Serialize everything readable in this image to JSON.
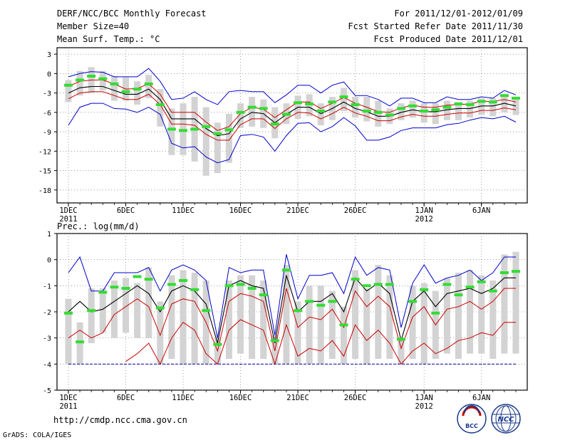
{
  "header": {
    "title": "DERF/NCC/BCC Monthly Forecast",
    "member": "Member Size=40",
    "variable": "Mean Surf. Temp.: °C",
    "period": "For 2011/12/01-2012/01/09",
    "started": "Fcst Started Refer Date 2011/11/30",
    "produced": "Fcst Produced Date 2011/12/01"
  },
  "footer": {
    "url": "http://cmdp.ncc.cma.gov.cn",
    "credit": "GrADS: COLA/IGES",
    "logo_left_text": "BCC",
    "logo_right_text": "NCC"
  },
  "colors": {
    "mean": "#000000",
    "inner": "#cc0000",
    "outer": "#0000cc",
    "bar": "#d3d3d3",
    "obs": "#33dd33",
    "grid": "#666666"
  },
  "chart_data": [
    {
      "type": "line",
      "title": "Mean Surf. Temp.: °C",
      "x_start_day": 1,
      "n_days": 40,
      "xticks": [
        {
          "day": 1,
          "label": "1DEC",
          "sub": "2011"
        },
        {
          "day": 6,
          "label": "6DEC",
          "sub": ""
        },
        {
          "day": 11,
          "label": "11DEC",
          "sub": ""
        },
        {
          "day": 16,
          "label": "16DEC",
          "sub": ""
        },
        {
          "day": 21,
          "label": "21DEC",
          "sub": ""
        },
        {
          "day": 26,
          "label": "26DEC",
          "sub": ""
        },
        {
          "day": 32,
          "label": "1JAN",
          "sub": "2012"
        },
        {
          "day": 37,
          "label": "6JAN",
          "sub": ""
        }
      ],
      "ylim": [
        -20,
        4
      ],
      "yticks": [
        3,
        0,
        -3,
        -6,
        -9,
        -12,
        -15,
        -18
      ],
      "series": [
        {
          "name": "mean",
          "values": [
            -3,
            -2.2,
            -2,
            -2,
            -2.6,
            -3.2,
            -3.2,
            -2.4,
            -4,
            -7,
            -7,
            -7,
            -8.5,
            -9.6,
            -9.3,
            -7,
            -6,
            -6.2,
            -7.6,
            -6.3,
            -5.2,
            -5.2,
            -6.2,
            -5.4,
            -4.4,
            -5.4,
            -5.9,
            -6.6,
            -6.6,
            -6,
            -5.6,
            -5.9,
            -5.9,
            -5.6,
            -5.4,
            -5.4,
            -5,
            -5,
            -4.6,
            -5
          ]
        },
        {
          "name": "upper",
          "values": [
            -2,
            -1.2,
            -1,
            -1,
            -1.6,
            -2.4,
            -2.3,
            -1.6,
            -3.2,
            -6,
            -6,
            -6,
            -7.5,
            -8.8,
            -8.2,
            -6.2,
            -5.2,
            -5.5,
            -6.8,
            -5.6,
            -4.4,
            -4.4,
            -5.4,
            -4.6,
            -3.7,
            -4.6,
            -5.2,
            -5.9,
            -6,
            -5.3,
            -4.9,
            -5.2,
            -5.2,
            -4.9,
            -4.8,
            -4.7,
            -4.3,
            -4.3,
            -4,
            -4.4
          ]
        },
        {
          "name": "lower",
          "values": [
            -3.9,
            -3,
            -2.8,
            -2.8,
            -3.4,
            -4,
            -4,
            -3.2,
            -4.8,
            -7.8,
            -7.8,
            -8,
            -9.4,
            -10.3,
            -10.3,
            -7.9,
            -7,
            -7,
            -8.5,
            -7,
            -6,
            -6.1,
            -7,
            -6.2,
            -5.2,
            -6.1,
            -6.6,
            -7.3,
            -7.3,
            -6.7,
            -6.3,
            -6.6,
            -6.6,
            -6.3,
            -6.1,
            -6.1,
            -5.7,
            -5.7,
            -5.3,
            -5.6
          ]
        },
        {
          "name": "max",
          "values": [
            -0.5,
            0,
            0.3,
            0.2,
            -0.5,
            -0.5,
            -0.5,
            0.8,
            -1.2,
            -4,
            -3.8,
            -2.8,
            -4,
            -4.8,
            -2.8,
            -2.6,
            -2.8,
            -2.8,
            -4.5,
            -3.3,
            -1.8,
            -1.8,
            -3,
            -1.8,
            -1.3,
            -3.4,
            -3.4,
            -4,
            -5,
            -3.8,
            -3.8,
            -4.5,
            -4.5,
            -3.6,
            -4,
            -4,
            -3.6,
            -3.8,
            -2.6,
            -3.3
          ]
        },
        {
          "name": "min",
          "values": [
            -8,
            -5.2,
            -4.6,
            -4.6,
            -5.4,
            -5.5,
            -6,
            -5.2,
            -6.3,
            -10.8,
            -11.5,
            -11.3,
            -12.9,
            -13.8,
            -13.3,
            -9.6,
            -9.4,
            -9.8,
            -12,
            -9.6,
            -7.7,
            -7.6,
            -9,
            -8.2,
            -6.8,
            -8.1,
            -10.3,
            -10.3,
            -9.8,
            -8.8,
            -8.4,
            -8.4,
            -8.4,
            -7.9,
            -7.7,
            -7.2,
            -6.8,
            -7,
            -6.6,
            -7.5
          ]
        },
        {
          "name": "bar_top",
          "values": [
            -1,
            0.4,
            1,
            0.4,
            -0.4,
            -0.6,
            -1.2,
            -0.2,
            -2.4,
            -5.4,
            -4.6,
            -3.6,
            -5.2,
            -7.6,
            -6.2,
            -4.6,
            -3.6,
            -4,
            -5.2,
            -4.6,
            -3.4,
            -3.2,
            -4.6,
            -3.6,
            -2.2,
            -3.6,
            -3.6,
            -4.2,
            -5.4,
            -4.6,
            -4.2,
            -4.6,
            -4.6,
            -4.2,
            -4.4,
            -4.2,
            -3.8,
            -3.8,
            -3.2,
            -3.6
          ]
        },
        {
          "name": "bar_bottom",
          "values": [
            -4.4,
            -3.4,
            -3,
            -2.6,
            -4.2,
            -4.2,
            -4.8,
            -3.8,
            -8.2,
            -12.6,
            -12.6,
            -13.6,
            -15.8,
            -15.4,
            -13.8,
            -8.4,
            -8.2,
            -8.4,
            -10,
            -7.8,
            -7,
            -6.6,
            -8,
            -7.2,
            -5.8,
            -6.8,
            -7.4,
            -8.2,
            -7.8,
            -7.2,
            -6.8,
            -7.6,
            -7.8,
            -7.2,
            -7.2,
            -6.8,
            -6.4,
            -6.6,
            -6,
            -6.4
          ]
        },
        {
          "name": "observed",
          "values": [
            -1.8,
            -1,
            -0.4,
            -0.8,
            -1.6,
            -2.8,
            -2.4,
            -1.6,
            -4.8,
            -8.6,
            -8.8,
            -8.6,
            -8.2,
            -9.3,
            -8.7,
            -6,
            -5.2,
            -5.4,
            -7.8,
            -6.3,
            -4.5,
            -4.7,
            -5.8,
            -4.4,
            -3.6,
            -4.8,
            -5.8,
            -6,
            -6.4,
            -5.4,
            -5,
            -5.8,
            -5.6,
            -5.2,
            -4.7,
            -4.8,
            -4.3,
            -4.4,
            -3.4,
            -3.8
          ]
        }
      ]
    },
    {
      "type": "line",
      "title": "Prec.: log(mm/d)",
      "x_start_day": 1,
      "n_days": 40,
      "xticks": [
        {
          "day": 1,
          "label": "1DEC",
          "sub": "2011"
        },
        {
          "day": 6,
          "label": "6DEC",
          "sub": ""
        },
        {
          "day": 11,
          "label": "11DEC",
          "sub": ""
        },
        {
          "day": 16,
          "label": "16DEC",
          "sub": ""
        },
        {
          "day": 21,
          "label": "21DEC",
          "sub": ""
        },
        {
          "day": 26,
          "label": "26DEC",
          "sub": ""
        },
        {
          "day": 32,
          "label": "1JAN",
          "sub": "2012"
        },
        {
          "day": 37,
          "label": "6JAN",
          "sub": ""
        }
      ],
      "ylim": [
        -5,
        1
      ],
      "yticks": [
        1,
        0,
        -1,
        -2,
        -3,
        -4,
        -5
      ],
      "baseline": -4,
      "series": [
        {
          "name": "max",
          "values": [
            -0.5,
            0.1,
            -1.2,
            -1.2,
            -0.5,
            -0.5,
            -0.5,
            -0.3,
            -1.2,
            -0.4,
            -0.2,
            -0.4,
            -0.8,
            -3,
            -0.3,
            -0.5,
            -0.4,
            -0.4,
            -2.9,
            0.2,
            -1.5,
            -0.6,
            -0.6,
            -0.5,
            -1.3,
            0.1,
            -0.6,
            -0.3,
            -0.4,
            -2.6,
            -0.9,
            -0.2,
            -0.9,
            -0.7,
            -0.6,
            -0.4,
            -0.8,
            -0.5,
            0.1,
            0.1
          ]
        },
        {
          "name": "mean",
          "values": [
            -2,
            -1.6,
            -2,
            -1.9,
            -1.6,
            -1.3,
            -1,
            -1.3,
            -2,
            -1.2,
            -1,
            -1.2,
            -1.7,
            -3.2,
            -1,
            -0.8,
            -1,
            -1.1,
            -3.2,
            -0.6,
            -2,
            -1.6,
            -1.6,
            -1.3,
            -2,
            -0.7,
            -1.2,
            -0.9,
            -1.3,
            -3.1,
            -1.6,
            -1.2,
            -1.8,
            -1.3,
            -1.2,
            -1.1,
            -1.3,
            -1.1,
            -0.7,
            -0.7
          ]
        },
        {
          "name": "inner",
          "values": [
            -3,
            -2.7,
            -3,
            -2.8,
            -2.1,
            -1.8,
            -1.5,
            -1.8,
            -2.9,
            -1.7,
            -1.5,
            -1.6,
            -2.4,
            -3.5,
            -1.6,
            -1.3,
            -1.4,
            -1.6,
            -3.5,
            -1.1,
            -2.6,
            -2.2,
            -2.3,
            -1.9,
            -2.6,
            -1.2,
            -1.8,
            -1.4,
            -1.8,
            -3.4,
            -2.2,
            -1.8,
            -2.5,
            -1.9,
            -1.8,
            -1.6,
            -1.9,
            -1.6,
            -1.1,
            -1.1
          ]
        },
        {
          "name": "inner2",
          "values": [
            null,
            null,
            null,
            null,
            null,
            -3.9,
            -3.6,
            -3.2,
            -4,
            -3,
            -2.4,
            -2.7,
            -3.6,
            -4,
            -2.7,
            -2.3,
            -2.5,
            -2.7,
            -4,
            -2.5,
            -3.7,
            -3.4,
            -3.5,
            -3.1,
            -3.7,
            -2.5,
            -3.1,
            -2.7,
            -3.2,
            -4,
            -3.5,
            -3.2,
            -3.6,
            -3.4,
            -3.1,
            -3,
            -2.8,
            -2.9,
            -2.4,
            -2.4
          ]
        },
        {
          "name": "bar_top",
          "values": [
            -1.5,
            -2.4,
            -1.1,
            -1.1,
            -0.8,
            -0.7,
            -0.9,
            -0.3,
            -1.6,
            -0.6,
            -0.4,
            -0.5,
            -0.8,
            -3,
            -0.8,
            -0.6,
            -0.6,
            -0.8,
            -2.9,
            -0.2,
            -1.6,
            -1,
            -1,
            -1.2,
            -1.8,
            -0.4,
            -1.1,
            -0.2,
            -0.6,
            -3,
            -1,
            -0.9,
            -1.2,
            -0.7,
            -0.5,
            -0.4,
            -0.6,
            -0.8,
            0.2,
            0.3
          ]
        },
        {
          "name": "bar_bottom",
          "values": [
            -4,
            -4,
            -3.2,
            -2.8,
            -3,
            -2.8,
            -3,
            -3,
            -4,
            -3.8,
            -4,
            -4,
            -4,
            -4,
            -3.8,
            -3.6,
            -3.8,
            -3.8,
            -4,
            -4,
            -4,
            -4,
            -4,
            -3.8,
            -4,
            -3.8,
            -4,
            -3.8,
            -3.8,
            -4,
            -3.8,
            -4,
            -3.8,
            -3.6,
            -3.8,
            -3.6,
            -3.6,
            -3.8,
            -3.6,
            -3.6
          ]
        },
        {
          "name": "observed",
          "values": [
            -2.05,
            -3.15,
            -1.95,
            -1.25,
            -1.05,
            -1.1,
            -0.65,
            -0.75,
            -1.85,
            -0.95,
            -0.8,
            -1.15,
            -1.95,
            -3.25,
            -1,
            -0.95,
            -1.1,
            -1.35,
            -3.1,
            -0.4,
            -1.95,
            -1.6,
            -1.75,
            -1.6,
            -2.5,
            -0.75,
            -1,
            -0.95,
            -0.95,
            -3.05,
            -1.6,
            -1.15,
            -2.05,
            -0.95,
            -1.35,
            -1.05,
            -0.85,
            -1.2,
            -0.5,
            -0.45
          ]
        }
      ]
    }
  ]
}
